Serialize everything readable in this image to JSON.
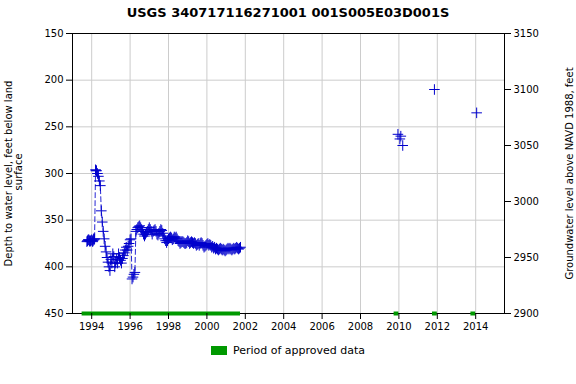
{
  "chart_data": {
    "type": "line",
    "title": "USGS 340717116271001 001S005E03D001S",
    "ylabel": "Depth to water level, feet below land\n surface",
    "y2label": "Groundwater level above NAVD 1988, feet",
    "xlim": [
      1993.0,
      2015.5
    ],
    "xticks": [
      1994,
      1996,
      1998,
      2000,
      2002,
      2004,
      2006,
      2008,
      2010,
      2012,
      2014
    ],
    "ylim": [
      450,
      150
    ],
    "yticks": [
      150,
      200,
      250,
      300,
      350,
      400,
      450
    ],
    "y2lim": [
      2900,
      3150
    ],
    "y2ticks": [
      2900,
      2950,
      3000,
      3050,
      3100,
      3150
    ],
    "grid": true,
    "legend": "bottom",
    "series": [
      {
        "type": "line",
        "color": "#0000cc",
        "line_style": "dashed",
        "marker": "plus",
        "x": [
          1993.75,
          1993.78,
          1993.82,
          1993.85,
          1993.88,
          1993.91,
          1993.94,
          1994.0,
          1994.02,
          1994.05,
          1994.07,
          1994.1,
          1994.12,
          1994.15,
          1994.2,
          1994.22,
          1994.25,
          1994.3,
          1994.35,
          1994.4,
          1994.45,
          1994.5,
          1994.55,
          1994.6,
          1994.65,
          1994.7,
          1994.75,
          1994.8,
          1994.85,
          1994.9,
          1994.95,
          1995.0,
          1995.05,
          1995.1,
          1995.15,
          1995.2,
          1995.25,
          1995.3,
          1995.35,
          1995.4,
          1995.45,
          1995.5,
          1995.55,
          1995.6,
          1995.65,
          1995.7,
          1995.75,
          1995.8,
          1995.85,
          1995.9,
          1995.95,
          1996.0,
          1996.05,
          1996.1,
          1996.15,
          1996.2,
          1996.25,
          1996.3,
          1996.35,
          1996.4,
          1996.45,
          1996.5,
          1996.55,
          1996.6,
          1996.65,
          1996.7,
          1996.75,
          1996.8,
          1996.85,
          1996.9,
          1996.95,
          1997.0,
          1997.05,
          1997.1,
          1997.15,
          1997.2,
          1997.25,
          1997.3,
          1997.35,
          1997.4,
          1997.45,
          1997.5,
          1997.55,
          1997.6,
          1997.65,
          1997.7,
          1997.75,
          1997.8,
          1997.85,
          1997.9,
          1997.95,
          1998.0,
          1998.05,
          1998.1,
          1998.15,
          1998.2,
          1998.25,
          1998.3,
          1998.35,
          1998.4,
          1998.45,
          1998.5,
          1998.55,
          1998.6,
          1998.65,
          1998.7,
          1998.75,
          1998.8,
          1998.85,
          1998.9,
          1998.95,
          1999.0,
          1999.05,
          1999.1,
          1999.15,
          1999.2,
          1999.25,
          1999.3,
          1999.35,
          1999.4,
          1999.45,
          1999.5,
          1999.55,
          1999.6,
          1999.65,
          1999.7,
          1999.75,
          1999.8,
          1999.85,
          1999.9,
          1999.95,
          2000.0,
          2000.05,
          2000.1,
          2000.15,
          2000.2,
          2000.25,
          2000.3,
          2000.35,
          2000.4,
          2000.45,
          2000.5,
          2000.55,
          2000.6,
          2000.65,
          2000.7,
          2000.75,
          2000.8,
          2000.85,
          2000.9,
          2000.95,
          2001.0,
          2001.05,
          2001.1,
          2001.15,
          2001.2,
          2001.25,
          2001.3,
          2001.35,
          2001.4,
          2001.45,
          2001.5,
          2001.55,
          2001.6,
          2001.65,
          2001.7,
          2001.75
        ],
        "values": [
          373,
          372,
          371,
          371,
          372,
          373,
          372,
          371,
          372,
          373,
          372,
          370,
          371,
          370,
          296,
          297,
          297,
          300,
          303,
          308,
          313,
          340,
          352,
          362,
          370,
          378,
          384,
          390,
          395,
          400,
          404,
          392,
          396,
          386,
          389,
          400,
          396,
          392,
          396,
          386,
          390,
          393,
          396,
          391,
          388,
          385,
          382,
          379,
          382,
          378,
          375,
          371,
          370,
          413,
          411,
          408,
          406,
          362,
          360,
          358,
          357,
          356,
          358,
          360,
          362,
          365,
          367,
          365,
          363,
          362,
          360,
          358,
          360,
          362,
          365,
          362,
          361,
          360,
          362,
          365,
          366,
          364,
          362,
          360,
          361,
          364,
          367,
          370,
          372,
          374,
          372,
          370,
          369,
          368,
          369,
          371,
          370,
          368,
          369,
          368,
          370,
          372,
          373,
          375,
          374,
          373,
          373,
          374,
          375,
          375,
          374,
          372,
          373,
          375,
          374,
          373,
          374,
          375,
          374,
          375,
          377,
          376,
          375,
          377,
          375,
          374,
          375,
          377,
          379,
          378,
          377,
          376,
          375,
          377,
          376,
          377,
          379,
          378,
          380,
          379,
          381,
          380,
          381,
          382,
          381,
          380,
          381,
          382,
          381,
          382,
          383,
          382,
          381,
          380,
          381,
          380,
          381,
          382,
          381,
          380,
          381,
          380,
          379,
          380,
          381,
          380,
          379
        ]
      },
      {
        "type": "scatter",
        "color": "#0000cc",
        "marker": "plus",
        "x": [
          2009.95,
          2010.05,
          2010.1,
          2010.2,
          2011.85,
          2014.05
        ],
        "values": [
          258,
          263,
          260,
          270,
          210,
          235
        ]
      },
      {
        "name": "Period of approved data",
        "type": "span",
        "color": "#009900",
        "periods": [
          [
            1993.5,
            2001.75
          ],
          [
            2009.75,
            2010.0
          ],
          [
            2011.75,
            2012.0
          ],
          [
            2013.75,
            2014.0
          ]
        ],
        "values": [
          450,
          450,
          450,
          450
        ]
      }
    ]
  }
}
